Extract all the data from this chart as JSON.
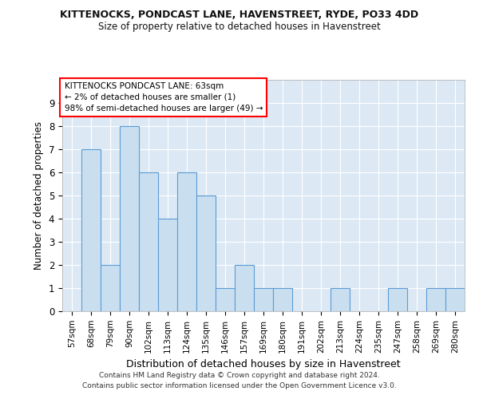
{
  "title_line1": "KITTENOCKS, PONDCAST LANE, HAVENSTREET, RYDE, PO33 4DD",
  "title_line2": "Size of property relative to detached houses in Havenstreet",
  "xlabel": "Distribution of detached houses by size in Havenstreet",
  "ylabel": "Number of detached properties",
  "categories": [
    "57sqm",
    "68sqm",
    "79sqm",
    "90sqm",
    "102sqm",
    "113sqm",
    "124sqm",
    "135sqm",
    "146sqm",
    "157sqm",
    "169sqm",
    "180sqm",
    "191sqm",
    "202sqm",
    "213sqm",
    "224sqm",
    "235sqm",
    "247sqm",
    "258sqm",
    "269sqm",
    "280sqm"
  ],
  "values": [
    0,
    7,
    2,
    8,
    6,
    4,
    6,
    5,
    1,
    2,
    1,
    1,
    0,
    0,
    1,
    0,
    0,
    1,
    0,
    1,
    1
  ],
  "bar_color": "#c9dff0",
  "bar_edge_color": "#5b9bd5",
  "ylim": [
    0,
    10
  ],
  "yticks": [
    0,
    1,
    2,
    3,
    4,
    5,
    6,
    7,
    8,
    9,
    10
  ],
  "annotation_box_text": "KITTENOCKS PONDCAST LANE: 63sqm\n← 2% of detached houses are smaller (1)\n98% of semi-detached houses are larger (49) →",
  "footer_line1": "Contains HM Land Registry data © Crown copyright and database right 2024.",
  "footer_line2": "Contains public sector information licensed under the Open Government Licence v3.0.",
  "fig_bg_color": "#ffffff",
  "plot_bg_color": "#dce9f5"
}
